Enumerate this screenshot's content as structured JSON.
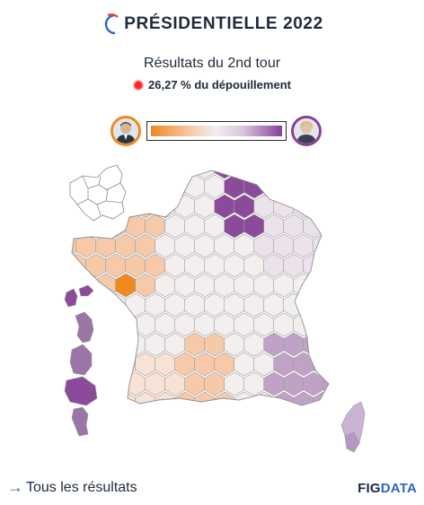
{
  "header": {
    "title": "PRÉSIDENTIELLE",
    "year": "2022",
    "subtitle": "Résultats du 2nd tour",
    "progress_text": "26,27 % du dépouillement"
  },
  "legend": {
    "left_color": "#ee8a1d",
    "right_color": "#8a3f9a",
    "mid_color": "#f2eef0"
  },
  "map": {
    "palette": {
      "orange_strong": "#f08a1f",
      "orange": "#f2a66a",
      "orange_light": "#f6c9a8",
      "orange_pale": "#f8e2d3",
      "neutral": "#f3efef",
      "purple_pale": "#ece2ec",
      "purple_light": "#d9c6dd",
      "purple": "#bfa2c6",
      "purple_strong": "#8b4a9a",
      "empty": "#ffffff",
      "border": "#9a9a9a"
    }
  },
  "footer": {
    "link_label": "Tous les résultats",
    "brand_fig": "FIG",
    "brand_data": "DATA"
  }
}
